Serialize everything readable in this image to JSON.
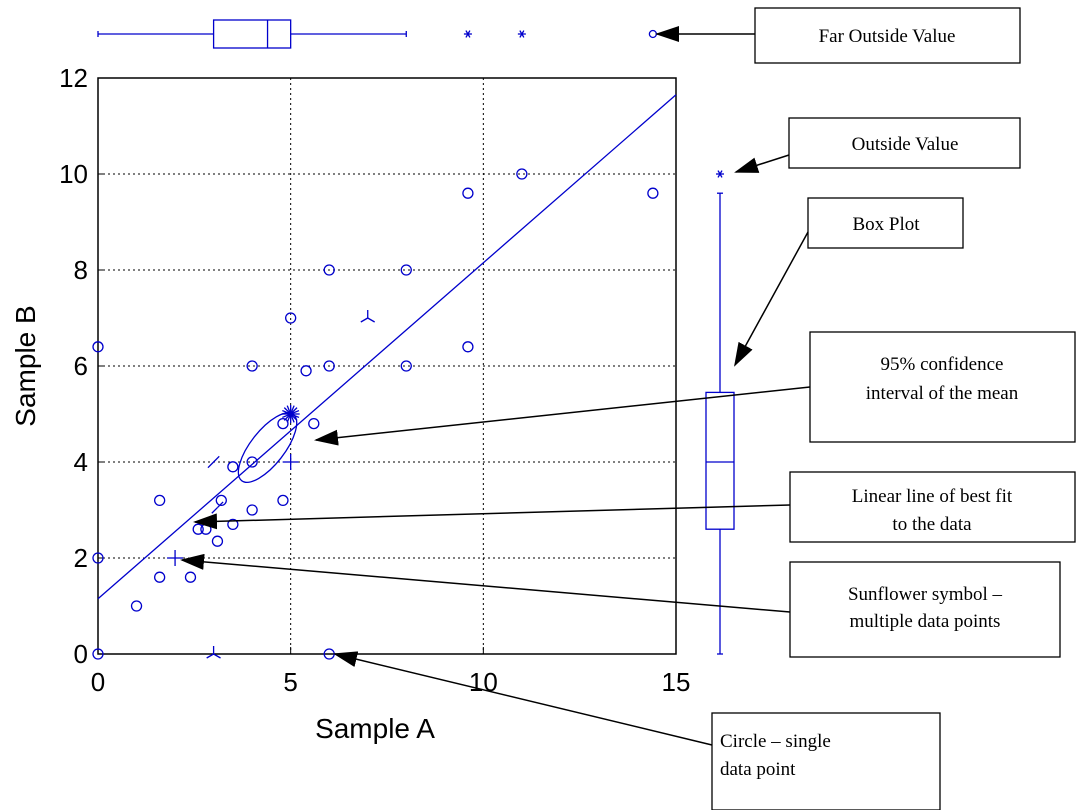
{
  "chart_data": {
    "type": "scatter",
    "title": "",
    "xlabel": "Sample A",
    "ylabel": "Sample B",
    "xlim": [
      0,
      15
    ],
    "ylim": [
      0,
      12
    ],
    "xticks": [
      0,
      5,
      10,
      15
    ],
    "yticks": [
      0,
      2,
      4,
      6,
      8,
      10,
      12
    ],
    "grid": true,
    "color": "#0000cc",
    "single_points": [
      [
        0,
        0
      ],
      [
        0,
        2
      ],
      [
        0,
        6.4
      ],
      [
        1,
        1
      ],
      [
        1.6,
        1.6
      ],
      [
        1.6,
        3.2
      ],
      [
        2.4,
        1.6
      ],
      [
        2.6,
        2.6
      ],
      [
        2.8,
        2.6
      ],
      [
        3.1,
        2.35
      ],
      [
        3.2,
        3.2
      ],
      [
        3.5,
        2.7
      ],
      [
        3.5,
        3.9
      ],
      [
        4,
        3
      ],
      [
        4,
        4
      ],
      [
        4,
        6
      ],
      [
        4.8,
        3.2
      ],
      [
        4.8,
        4.8
      ],
      [
        5,
        7
      ],
      [
        5.4,
        5.9
      ],
      [
        5.6,
        4.8
      ],
      [
        6,
        6
      ],
      [
        6,
        8
      ],
      [
        6,
        0
      ],
      [
        8,
        6
      ],
      [
        8,
        8
      ],
      [
        9.6,
        6.4
      ],
      [
        9.6,
        9.6
      ],
      [
        11,
        10
      ],
      [
        14.4,
        9.6
      ]
    ],
    "sunflower_points": [
      {
        "x": 2,
        "y": 2,
        "count": 4
      },
      {
        "x": 3,
        "y": 4,
        "count": 2
      },
      {
        "x": 3,
        "y": 0,
        "count": 3
      },
      {
        "x": 3.1,
        "y": 3.05,
        "count": 2
      },
      {
        "x": 5,
        "y": 4,
        "count": 4
      },
      {
        "x": 7,
        "y": 7,
        "count": 3
      },
      {
        "x": 5,
        "y": 5,
        "count": 16
      }
    ],
    "best_fit_line": {
      "intercept": 1.15,
      "slope": 0.7
    }
  },
  "box_plot_x": {
    "min": 0,
    "q1": 3,
    "median": 4.4,
    "q3": 5,
    "max": 8,
    "outside": [
      9.6,
      11
    ],
    "far_outside": [
      14.4
    ]
  },
  "box_plot_y": {
    "min": 0,
    "q1": 2.6,
    "median": 4,
    "q3": 5.45,
    "max": 9.6,
    "outside": [
      10
    ]
  },
  "callouts": {
    "far_outside": [
      "Far Outside Value"
    ],
    "outside": [
      "Outside Value"
    ],
    "box_plot": [
      "Box Plot"
    ],
    "ci": [
      "95% confidence",
      "interval of the mean"
    ],
    "fit": [
      "Linear line of best fit",
      "to the data"
    ],
    "sunflower": [
      "Sunflower symbol –",
      "multiple data points"
    ],
    "circle": [
      "Circle – single",
      "data point"
    ]
  }
}
